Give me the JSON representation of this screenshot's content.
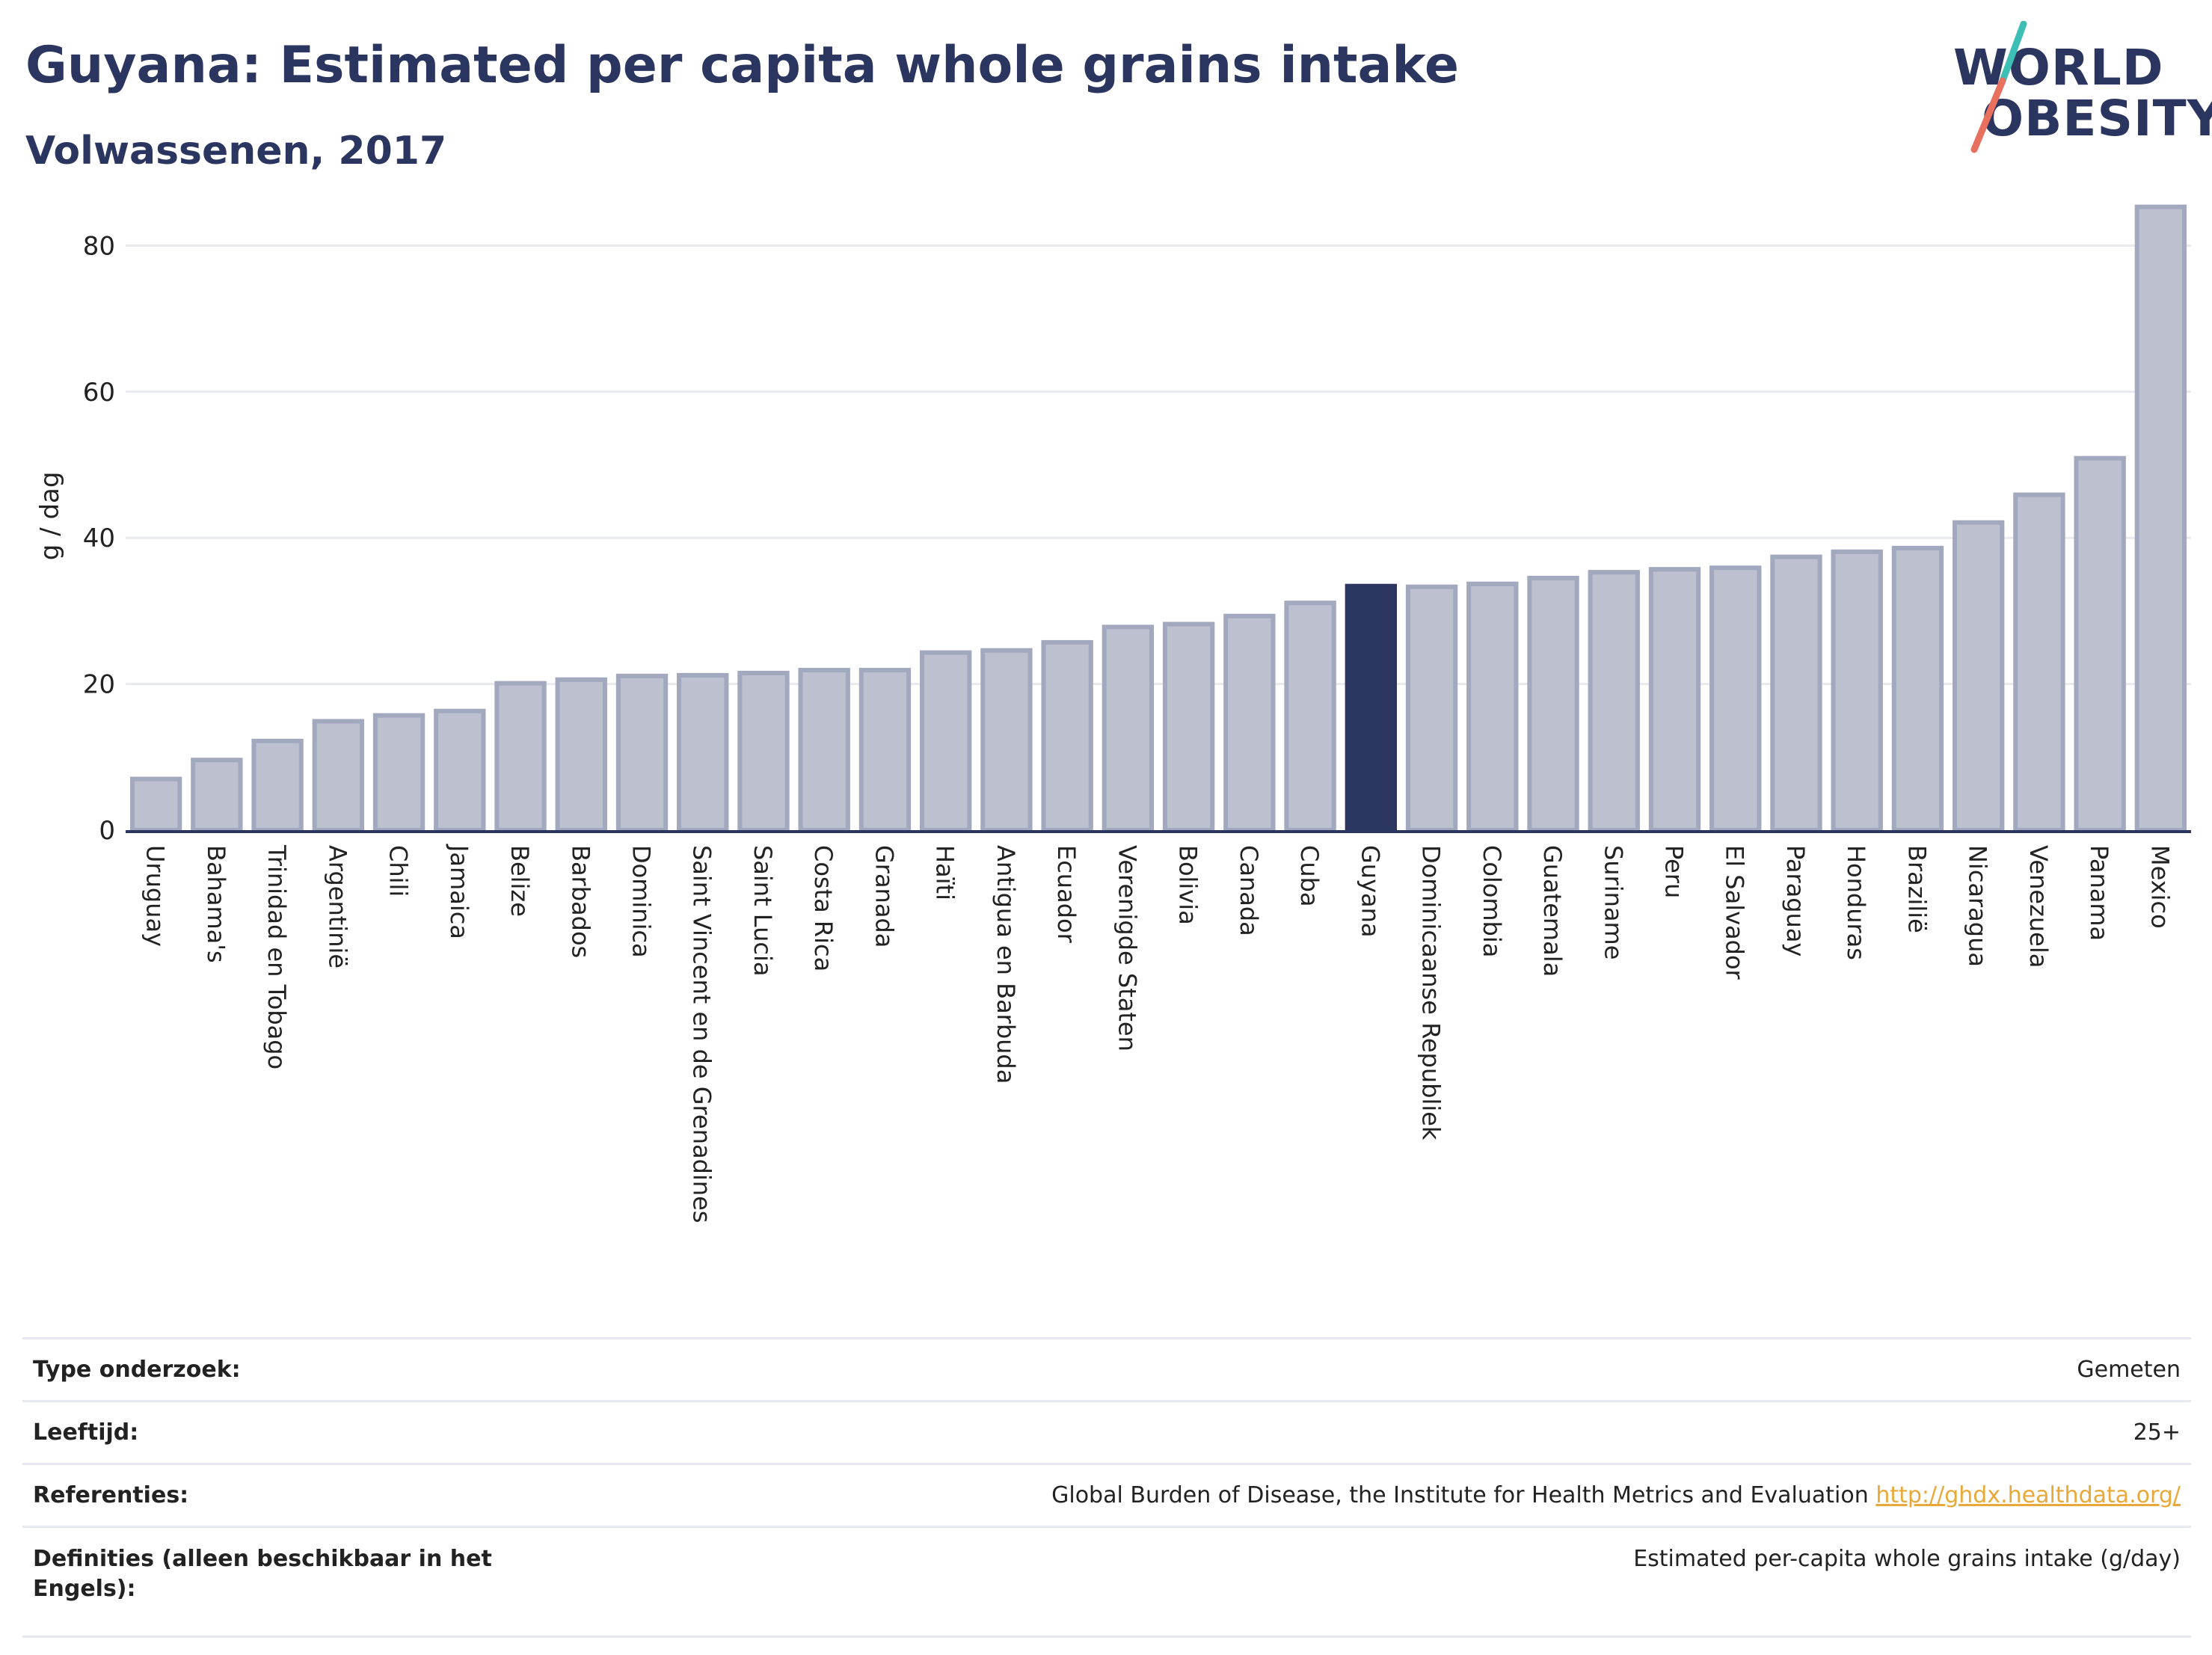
{
  "header": {
    "title": "Guyana: Estimated per capita whole grains intake",
    "subtitle": "Volwassenen, 2017"
  },
  "logo": {
    "line1": "WORLD",
    "line2": "OBESITY"
  },
  "colors": {
    "bar": "#bcc0cf",
    "bar_border": "#a2a8bd",
    "highlight": "#2a3560",
    "axis": "#2a3560",
    "grid": "#e8eaf0",
    "logo_teal": "#3ebfb5",
    "logo_coral": "#e8705f",
    "link": "#e8a93a"
  },
  "chart_data": {
    "type": "bar",
    "ylabel": "g / dag",
    "ylim": [
      0,
      87
    ],
    "yticks": [
      0,
      20,
      40,
      60,
      80
    ],
    "grid": true,
    "highlight": "Guyana",
    "categories": [
      "Uruguay",
      "Bahama's",
      "Trinidad en Tobago",
      "Argentinië",
      "Chili",
      "Jamaica",
      "Belize",
      "Barbados",
      "Dominica",
      "Saint Vincent en de Grenadines",
      "Saint Lucia",
      "Costa Rica",
      "Granada",
      "Haïti",
      "Antigua en Barbuda",
      "Ecuador",
      "Verenigde Staten",
      "Bolivia",
      "Canada",
      "Cuba",
      "Guyana",
      "Dominicaanse Republiek",
      "Colombia",
      "Guatemala",
      "Suriname",
      "Peru",
      "El Salvador",
      "Paraguay",
      "Honduras",
      "Brazilië",
      "Nicaragua",
      "Venezuela",
      "Panama",
      "Mexico"
    ],
    "values": [
      7,
      9.6,
      12.2,
      14.9,
      15.7,
      16.3,
      20.1,
      20.6,
      21.1,
      21.2,
      21.5,
      21.9,
      21.9,
      24.3,
      24.6,
      25.7,
      27.8,
      28.2,
      29.3,
      31.1,
      33.4,
      33.3,
      33.7,
      34.5,
      35.3,
      35.7,
      35.9,
      37.4,
      38.1,
      38.6,
      42.1,
      45.9,
      50.9,
      85.3
    ]
  },
  "info": {
    "rows": [
      {
        "label": "Type onderzoek:",
        "value": "Gemeten"
      },
      {
        "label": "Leeftijd:",
        "value": "25+"
      },
      {
        "label": "Referenties:",
        "value": "Global Burden of Disease, the Institute for Health Metrics and Evaluation",
        "link": "http://ghdx.healthdata.org/"
      },
      {
        "label": "Definities (alleen beschikbaar in het Engels):",
        "value": "Estimated per-capita whole grains intake (g/day)"
      }
    ]
  }
}
